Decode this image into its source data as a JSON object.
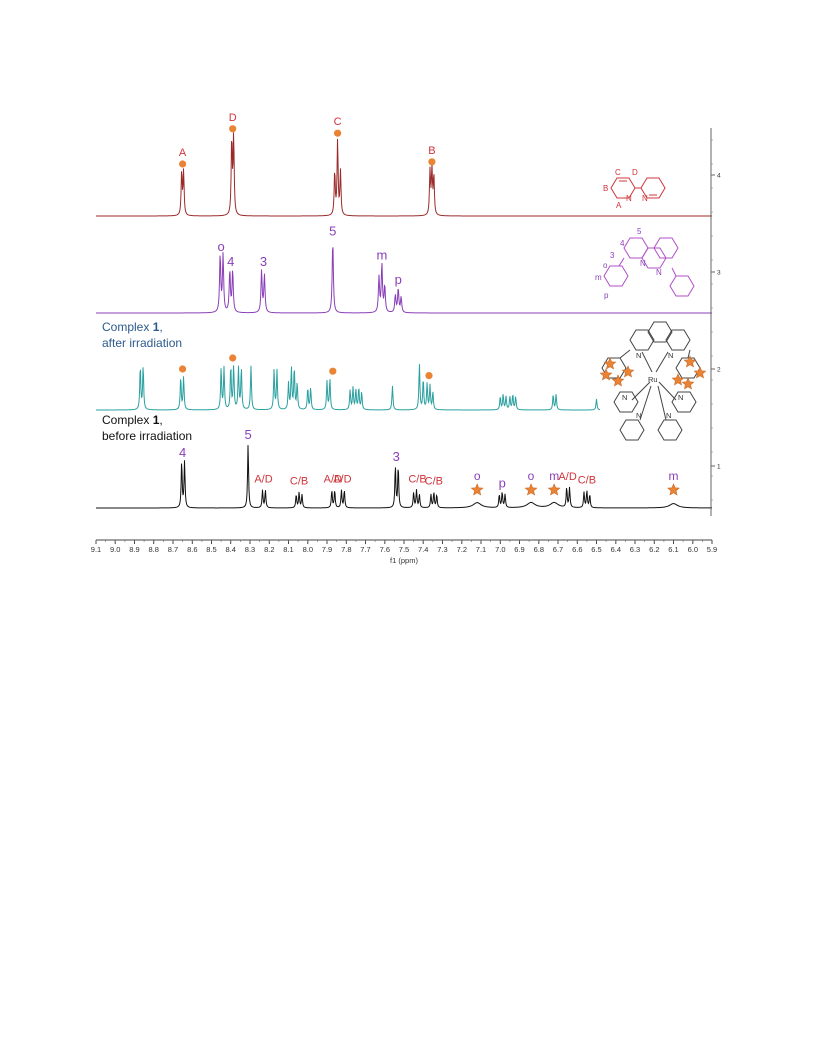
{
  "chart_data": {
    "type": "line",
    "xlabel": "f1 (ppm)",
    "x_axis": {
      "range": [
        9.1,
        5.9
      ],
      "reversed": true,
      "tick_labels": [
        "9.1",
        "9.0",
        "8.9",
        "8.8",
        "8.7",
        "8.6",
        "8.5",
        "8.4",
        "8.3",
        "8.2",
        "8.1",
        "8.0",
        "7.9",
        "7.8",
        "7.7",
        "7.6",
        "7.5",
        "7.4",
        "7.3",
        "7.2",
        "7.1",
        "7.0",
        "6.9",
        "6.8",
        "6.7",
        "6.6",
        "6.5",
        "6.4",
        "6.3",
        "6.2",
        "6.1",
        "6.0",
        "5.9"
      ]
    },
    "y_axis": {
      "tick_labels": [
        "1",
        "2",
        "3",
        "4"
      ]
    },
    "grid": false,
    "legend": "none",
    "colors": {
      "trace4": "#9b2b2b",
      "trace3": "#8a3fb8",
      "trace2": "#2aa0a0",
      "trace1": "#111111",
      "label_red": "#d0343a",
      "label_purple": "#8a3fb8",
      "label_blue": "#2d5a8e",
      "marker_orange": "#ea8434"
    },
    "series": [
      {
        "name": "",
        "trace": 4,
        "color": "#9b2b2b",
        "peaks": [
          {
            "ppm": 8.655,
            "h": 1.0
          },
          {
            "ppm": 8.645,
            "h": 1.0
          },
          {
            "ppm": 8.395,
            "h": 1.75
          },
          {
            "ppm": 8.385,
            "h": 1.8
          },
          {
            "ppm": 7.86,
            "h": 1.0
          },
          {
            "ppm": 7.845,
            "h": 1.7
          },
          {
            "ppm": 7.83,
            "h": 1.0
          },
          {
            "ppm": 7.365,
            "h": 1.0
          },
          {
            "ppm": 7.355,
            "h": 1.05
          },
          {
            "ppm": 7.345,
            "h": 0.9
          }
        ],
        "labels": [
          {
            "text": "A",
            "ppm": 8.65,
            "marker": "circle"
          },
          {
            "text": "D",
            "ppm": 8.39,
            "marker": "circle"
          },
          {
            "text": "C",
            "ppm": 7.845,
            "marker": "circle"
          },
          {
            "text": "B",
            "ppm": 7.355,
            "marker": "circle"
          }
        ]
      },
      {
        "name": "",
        "trace": 3,
        "color": "#8a3fb8",
        "peaks": [
          {
            "ppm": 8.455,
            "h": 1.3
          },
          {
            "ppm": 8.44,
            "h": 1.3
          },
          {
            "ppm": 8.405,
            "h": 0.95
          },
          {
            "ppm": 8.39,
            "h": 0.95
          },
          {
            "ppm": 8.24,
            "h": 0.95
          },
          {
            "ppm": 8.225,
            "h": 0.85
          },
          {
            "ppm": 7.87,
            "h": 1.65
          },
          {
            "ppm": 7.63,
            "h": 0.8
          },
          {
            "ppm": 7.615,
            "h": 1.1
          },
          {
            "ppm": 7.6,
            "h": 0.6
          },
          {
            "ppm": 7.545,
            "h": 0.4
          },
          {
            "ppm": 7.53,
            "h": 0.55
          },
          {
            "ppm": 7.515,
            "h": 0.35
          }
        ],
        "labels": [
          {
            "text": "o",
            "ppm": 8.45
          },
          {
            "text": "4",
            "ppm": 8.4
          },
          {
            "text": "3",
            "ppm": 8.23
          },
          {
            "text": "5",
            "ppm": 7.87
          },
          {
            "text": "m",
            "ppm": 7.615
          },
          {
            "text": "p",
            "ppm": 7.53
          }
        ]
      },
      {
        "name": "",
        "trace": 2,
        "color": "#2aa0a0",
        "caption": {
          "line1_prefix": "Complex ",
          "line1_bold": "1",
          "line1_suffix": ",",
          "line2": "after irradiation"
        },
        "peaks": [
          {
            "ppm": 8.87,
            "h": 1.0
          },
          {
            "ppm": 8.855,
            "h": 1.0
          },
          {
            "ppm": 8.66,
            "h": 0.75
          },
          {
            "ppm": 8.645,
            "h": 0.75
          },
          {
            "ppm": 8.45,
            "h": 0.95
          },
          {
            "ppm": 8.435,
            "h": 0.95
          },
          {
            "ppm": 8.4,
            "h": 1.0
          },
          {
            "ppm": 8.385,
            "h": 1.0
          },
          {
            "ppm": 8.36,
            "h": 0.95
          },
          {
            "ppm": 8.345,
            "h": 0.95
          },
          {
            "ppm": 8.295,
            "h": 1.0
          },
          {
            "ppm": 8.175,
            "h": 0.9
          },
          {
            "ppm": 8.16,
            "h": 0.9
          },
          {
            "ppm": 8.1,
            "h": 0.6
          },
          {
            "ppm": 8.085,
            "h": 0.95
          },
          {
            "ppm": 8.07,
            "h": 0.95
          },
          {
            "ppm": 8.055,
            "h": 0.6
          },
          {
            "ppm": 8.0,
            "h": 0.5
          },
          {
            "ppm": 7.985,
            "h": 0.5
          },
          {
            "ppm": 7.9,
            "h": 0.65
          },
          {
            "ppm": 7.885,
            "h": 0.7
          },
          {
            "ppm": 7.78,
            "h": 0.45
          },
          {
            "ppm": 7.765,
            "h": 0.5
          },
          {
            "ppm": 7.75,
            "h": 0.45
          },
          {
            "ppm": 7.735,
            "h": 0.5
          },
          {
            "ppm": 7.72,
            "h": 0.4
          },
          {
            "ppm": 7.56,
            "h": 0.55
          },
          {
            "ppm": 7.42,
            "h": 1.05
          },
          {
            "ppm": 7.4,
            "h": 0.7
          },
          {
            "ppm": 7.38,
            "h": 0.6
          },
          {
            "ppm": 7.365,
            "h": 0.55
          },
          {
            "ppm": 7.35,
            "h": 0.4
          },
          {
            "ppm": 7.0,
            "h": 0.3
          },
          {
            "ppm": 6.985,
            "h": 0.35
          },
          {
            "ppm": 6.97,
            "h": 0.3
          },
          {
            "ppm": 6.95,
            "h": 0.3
          },
          {
            "ppm": 6.935,
            "h": 0.35
          },
          {
            "ppm": 6.92,
            "h": 0.3
          },
          {
            "ppm": 6.725,
            "h": 0.35
          },
          {
            "ppm": 6.71,
            "h": 0.35
          },
          {
            "ppm": 6.5,
            "h": 0.25
          }
        ],
        "labels": [
          {
            "text": "",
            "ppm": 8.65,
            "marker": "circle"
          },
          {
            "text": "",
            "ppm": 8.39,
            "marker": "circle"
          },
          {
            "text": "",
            "ppm": 7.87,
            "marker": "circle"
          },
          {
            "text": "",
            "ppm": 7.37,
            "marker": "circle"
          }
        ]
      },
      {
        "name": "",
        "trace": 1,
        "color": "#111111",
        "caption": {
          "line1_prefix": "Complex ",
          "line1_bold": "1",
          "line1_suffix": ",",
          "line2": "before irradiation"
        },
        "peaks": [
          {
            "ppm": 8.655,
            "h": 1.05
          },
          {
            "ppm": 8.64,
            "h": 1.05
          },
          {
            "ppm": 8.31,
            "h": 1.45
          },
          {
            "ppm": 8.235,
            "h": 0.4
          },
          {
            "ppm": 8.22,
            "h": 0.4
          },
          {
            "ppm": 8.06,
            "h": 0.3
          },
          {
            "ppm": 8.045,
            "h": 0.35
          },
          {
            "ppm": 8.03,
            "h": 0.3
          },
          {
            "ppm": 7.875,
            "h": 0.4
          },
          {
            "ppm": 7.86,
            "h": 0.4
          },
          {
            "ppm": 7.825,
            "h": 0.4
          },
          {
            "ppm": 7.81,
            "h": 0.4
          },
          {
            "ppm": 7.545,
            "h": 0.95
          },
          {
            "ppm": 7.53,
            "h": 0.95
          },
          {
            "ppm": 7.45,
            "h": 0.35
          },
          {
            "ppm": 7.435,
            "h": 0.4
          },
          {
            "ppm": 7.42,
            "h": 0.3
          },
          {
            "ppm": 7.36,
            "h": 0.3
          },
          {
            "ppm": 7.345,
            "h": 0.35
          },
          {
            "ppm": 7.33,
            "h": 0.3
          },
          {
            "ppm": 7.12,
            "h": 0.12
          },
          {
            "ppm": 7.005,
            "h": 0.3
          },
          {
            "ppm": 6.99,
            "h": 0.35
          },
          {
            "ppm": 6.975,
            "h": 0.3
          },
          {
            "ppm": 6.84,
            "h": 0.12
          },
          {
            "ppm": 6.72,
            "h": 0.12
          },
          {
            "ppm": 6.655,
            "h": 0.45
          },
          {
            "ppm": 6.64,
            "h": 0.45
          },
          {
            "ppm": 6.565,
            "h": 0.35
          },
          {
            "ppm": 6.55,
            "h": 0.38
          },
          {
            "ppm": 6.535,
            "h": 0.3
          },
          {
            "ppm": 6.1,
            "h": 0.1
          }
        ],
        "labels": [
          {
            "text": "4",
            "ppm": 8.65,
            "color": "purple"
          },
          {
            "text": "5",
            "ppm": 8.31,
            "color": "purple"
          },
          {
            "text": "A/D",
            "ppm": 8.23,
            "color": "red"
          },
          {
            "text": "C/B",
            "ppm": 8.045,
            "color": "red"
          },
          {
            "text": "A/D",
            "ppm": 7.87,
            "color": "red"
          },
          {
            "text": "A/D",
            "ppm": 7.82,
            "color": "red"
          },
          {
            "text": "3",
            "ppm": 7.54,
            "color": "purple"
          },
          {
            "text": "C/B",
            "ppm": 7.43,
            "color": "red"
          },
          {
            "text": "C/B",
            "ppm": 7.345,
            "color": "red"
          },
          {
            "text": "o",
            "ppm": 7.12,
            "color": "purple",
            "marker": "star"
          },
          {
            "text": "p",
            "ppm": 6.99,
            "color": "purple"
          },
          {
            "text": "o",
            "ppm": 6.84,
            "color": "purple",
            "marker": "star"
          },
          {
            "text": "m",
            "ppm": 6.72,
            "color": "purple",
            "marker": "star"
          },
          {
            "text": "A/D",
            "ppm": 6.65,
            "color": "red"
          },
          {
            "text": "C/B",
            "ppm": 6.55,
            "color": "red"
          },
          {
            "text": "m",
            "ppm": 6.1,
            "color": "purple",
            "marker": "star"
          }
        ]
      }
    ],
    "structures": [
      {
        "trace": 4,
        "name": "2,2'-bipyridine",
        "color": "#d0343a",
        "atom_labels": [
          "C",
          "D",
          "B",
          "N",
          "A",
          "N"
        ]
      },
      {
        "trace": 3,
        "name": "2,9-diphenyl-1,10-phenanthroline",
        "color": "#8a3fb8",
        "atom_labels": [
          "5",
          "4",
          "3",
          "N",
          "N",
          "o",
          "m",
          "p"
        ]
      },
      {
        "trace": 2,
        "name": "complex 1",
        "color": "#444444",
        "atom_labels": [
          "N",
          "N",
          "Ru",
          "N",
          "N",
          "N",
          "N"
        ]
      }
    ]
  }
}
